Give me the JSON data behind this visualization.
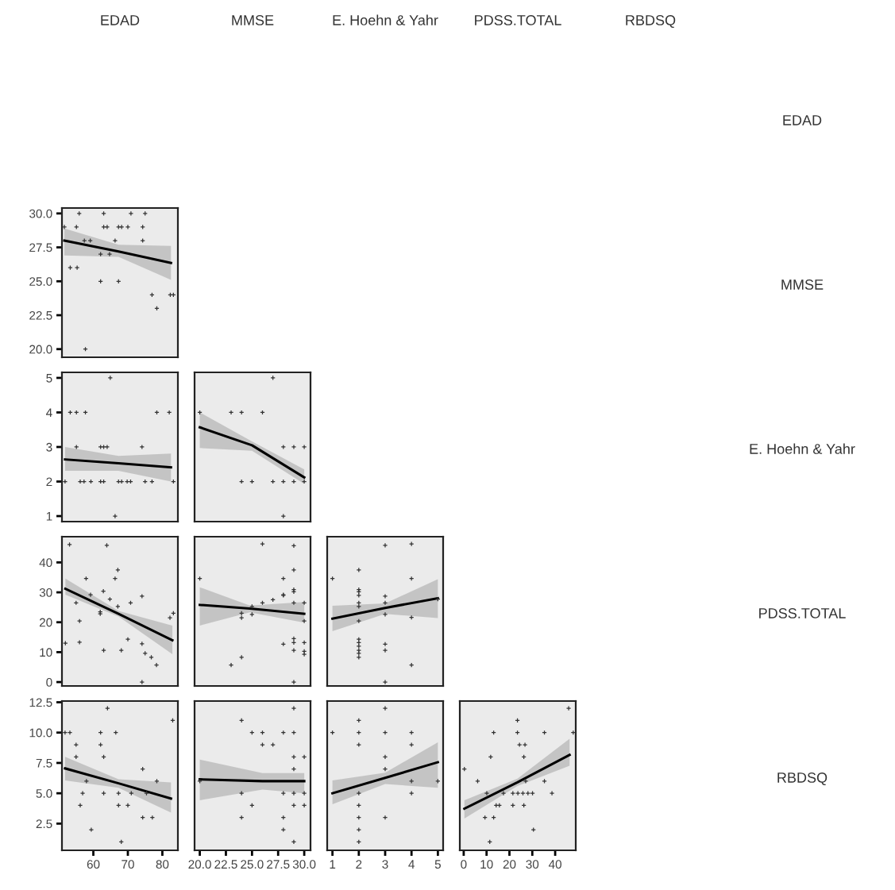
{
  "chart_data": [
    {
      "type": "other",
      "annotations": [
        "EDAD",
        "MMSE",
        "E. Hoehn & Yahr",
        "PDSS.TOTAL",
        "RBDSQ",
        "EDAD",
        "MMSE",
        "E. Hoehn & Yahr",
        "PDSS.TOTAL",
        "RBDSQ"
      ]
    },
    {
      "type": "scatter",
      "tick_labels": "y",
      "xlim": [
        50.9,
        84.5
      ],
      "ylim": [
        19.4,
        30.4
      ],
      "yticks": [
        {
          "value": 20,
          "label": "20.0"
        },
        {
          "value": 22.5,
          "label": "22.5"
        },
        {
          "value": 25,
          "label": "25.0"
        },
        {
          "value": 27.5,
          "label": "27.5"
        },
        {
          "value": 30,
          "label": "30.0"
        }
      ],
      "series": [
        {
          "marker": "cross",
          "color": "#333333",
          "x": [
            51.6,
            55.9,
            55.1,
            53.3,
            55.3,
            57.4,
            59.1,
            57.7,
            63.0,
            63.0,
            64.0,
            62.1,
            62.1,
            64.7,
            66.3,
            67.3,
            68.2,
            67.3,
            70.0,
            70.9,
            74.3,
            75.0,
            74.3,
            77.0,
            78.4,
            82.3,
            83.2
          ],
          "values": [
            29,
            30,
            29,
            26,
            26,
            28,
            28,
            20,
            30,
            29,
            29,
            27,
            25,
            27,
            28,
            29,
            29,
            25,
            29,
            30,
            29,
            30,
            28,
            24,
            23,
            24,
            24
          ]
        },
        {
          "type": "line",
          "color": "#000000",
          "x": [
            51.6,
            67.3,
            82.5
          ],
          "values": [
            28.0,
            27.2,
            26.35
          ],
          "lower": [
            26.9,
            26.8,
            25.1
          ],
          "upper": [
            28.9,
            27.7,
            27.6
          ]
        }
      ]
    },
    {
      "type": "scatter",
      "tick_labels": "y",
      "xlim": [
        50.9,
        84.5
      ],
      "ylim": [
        0.84,
        5.16
      ],
      "yticks": [
        1,
        2,
        3,
        4,
        5
      ],
      "series": [
        {
          "marker": "cross",
          "color": "#333333",
          "x": [
            51.8,
            53.3,
            55.1,
            55.1,
            56.2,
            57.3,
            57.7,
            59.3,
            62.1,
            63.0,
            62.1,
            63.0,
            64.0,
            64.9,
            66.3,
            67.3,
            68.2,
            69.8,
            70.8,
            74.1,
            75.0,
            77.0,
            78.4,
            82.0,
            83.2
          ],
          "values": [
            2,
            4,
            4,
            3,
            2,
            2,
            4,
            2,
            2,
            2,
            3,
            3,
            3,
            5,
            1,
            2,
            2,
            2,
            2,
            3,
            2,
            2,
            4,
            4,
            2
          ]
        },
        {
          "type": "line",
          "color": "#000000",
          "x": [
            51.8,
            67.3,
            82.5
          ],
          "values": [
            2.64,
            2.53,
            2.41
          ],
          "lower": [
            2.31,
            2.31,
            2.0
          ],
          "upper": [
            3.0,
            2.74,
            2.81
          ]
        }
      ]
    },
    {
      "type": "scatter",
      "tick_labels": false,
      "xlim": [
        19.5,
        30.6
      ],
      "ylim": [
        0.84,
        5.16
      ],
      "series": [
        {
          "marker": "cross",
          "color": "#333333",
          "x": [
            20,
            23,
            24,
            24,
            25,
            26,
            27,
            27,
            28,
            28,
            28,
            29,
            29,
            30,
            30
          ],
          "values": [
            4,
            4,
            4,
            2,
            2,
            4,
            5,
            2,
            1,
            3,
            2,
            3,
            2,
            3,
            2
          ]
        },
        {
          "type": "line",
          "color": "#000000",
          "x": [
            20,
            25,
            30
          ],
          "values": [
            3.57,
            3.05,
            2.12
          ],
          "lower": [
            2.97,
            2.89,
            1.93
          ],
          "upper": [
            4.0,
            3.16,
            2.35
          ]
        }
      ]
    },
    {
      "type": "scatter",
      "tick_labels": "y",
      "xlim": [
        50.9,
        84.5
      ],
      "ylim": [
        -1.3,
        48.6
      ],
      "yticks": [
        0,
        10,
        20,
        30,
        40
      ],
      "series": [
        {
          "marker": "cross",
          "color": "#333333",
          "x": [
            51.9,
            53.1,
            55.0,
            56.0,
            56.0,
            57.9,
            59.2,
            62.0,
            62.0,
            62.9,
            63.0,
            63.9,
            64.8,
            66.3,
            67.1,
            67.1,
            68.1,
            70.0,
            70.8,
            74.1,
            74.1,
            74.1,
            75.0,
            76.8,
            78.3,
            82.2,
            83.2
          ],
          "values": [
            13,
            46,
            26.5,
            20.4,
            13.3,
            34.6,
            29.2,
            22.8,
            23.5,
            30.4,
            10.6,
            45.7,
            27.7,
            34.6,
            25.3,
            37.5,
            10.6,
            14.3,
            26.5,
            28.7,
            12.8,
            0,
            9.6,
            8.3,
            5.7,
            21.5,
            23.0
          ]
        },
        {
          "type": "line",
          "color": "#000000",
          "x": [
            51.9,
            67.3,
            82.9
          ],
          "values": [
            31.2,
            22.8,
            14.0
          ],
          "lower": [
            29.2,
            21.9,
            9.3
          ],
          "upper": [
            34.6,
            23.8,
            18.9
          ]
        }
      ]
    },
    {
      "type": "scatter",
      "tick_labels": false,
      "xlim": [
        19.5,
        30.6
      ],
      "ylim": [
        -1.3,
        48.6
      ],
      "series": [
        {
          "marker": "cross",
          "color": "#333333",
          "x": [
            20,
            23,
            24,
            24,
            24,
            25,
            25,
            26,
            26,
            27,
            28,
            28,
            28,
            28,
            29,
            29,
            29,
            29,
            29,
            29,
            29,
            29,
            29,
            30,
            30,
            30,
            30,
            30
          ],
          "values": [
            34.6,
            5.7,
            8.3,
            21.5,
            23.0,
            25.3,
            22.6,
            46.2,
            26.5,
            27.5,
            29,
            29.2,
            34.6,
            12.7,
            45.6,
            37.5,
            30.2,
            30.9,
            26.5,
            14.5,
            13.2,
            10.6,
            0,
            26.5,
            20.4,
            13.2,
            10.3,
            9.3
          ]
        },
        {
          "type": "line",
          "color": "#000000",
          "x": [
            20,
            24.8,
            30
          ],
          "values": [
            25.8,
            24.6,
            22.8
          ],
          "lower": [
            18.9,
            23.3,
            19.9
          ],
          "upper": [
            31.7,
            25.6,
            26.8
          ]
        }
      ]
    },
    {
      "type": "scatter",
      "tick_labels": false,
      "xlim": [
        0.8,
        5.2
      ],
      "ylim": [
        -1.3,
        48.6
      ],
      "series": [
        {
          "marker": "cross",
          "color": "#333333",
          "x": [
            1,
            2,
            2,
            2,
            2,
            2,
            2,
            2,
            2,
            2,
            2,
            2,
            2,
            2,
            3,
            3,
            3,
            3,
            3,
            3,
            3,
            4,
            4,
            4,
            4,
            5
          ],
          "values": [
            34.6,
            37.5,
            30.9,
            30.2,
            29,
            26.5,
            25.3,
            20.4,
            14.3,
            13.2,
            12,
            10.6,
            9.6,
            8.3,
            45.7,
            28.7,
            26.5,
            22.6,
            12.7,
            10.6,
            0,
            46.2,
            34.6,
            21.6,
            5.7,
            27.7
          ]
        },
        {
          "type": "line",
          "color": "#000000",
          "x": [
            1,
            3,
            5
          ],
          "values": [
            21.2,
            24.8,
            28.0
          ],
          "lower": [
            17,
            22.8,
            21.4
          ],
          "upper": [
            25.5,
            26.3,
            34.4
          ]
        }
      ]
    },
    {
      "type": "scatter",
      "xlim": [
        50.9,
        84.5
      ],
      "ylim": [
        0.3,
        12.6
      ],
      "xticks": [
        60,
        70,
        80
      ],
      "yticks": [
        {
          "value": 2.5,
          "label": "2.5"
        },
        {
          "value": 5,
          "label": "5.0"
        },
        {
          "value": 7.5,
          "label": "7.5"
        },
        {
          "value": 10,
          "label": "10.0"
        },
        {
          "value": 12.5,
          "label": "12.5"
        }
      ],
      "series": [
        {
          "marker": "cross",
          "color": "#333333",
          "x": [
            51.8,
            53.2,
            55.0,
            55.0,
            56.2,
            56.9,
            58.0,
            59.4,
            64.1,
            62.1,
            62.1,
            63.0,
            63.0,
            66.5,
            67.3,
            67.3,
            68.1,
            70.0,
            71.0,
            74.3,
            74.3,
            75.4,
            77.1,
            78.4,
            83.0
          ],
          "values": [
            10,
            10,
            9,
            8,
            4,
            5,
            6,
            2,
            12,
            10,
            9,
            8,
            5,
            10,
            5,
            4,
            1,
            4,
            5,
            7,
            3,
            5,
            3,
            6,
            11
          ]
        },
        {
          "type": "line",
          "color": "#000000",
          "x": [
            51.8,
            67.3,
            82.5
          ],
          "values": [
            7.05,
            5.82,
            4.57
          ],
          "lower": [
            6.06,
            5.46,
            3.4
          ],
          "upper": [
            8.0,
            6.15,
            5.9
          ]
        }
      ]
    },
    {
      "type": "scatter",
      "tick_labels": "x",
      "xlim": [
        19.5,
        30.6
      ],
      "ylim": [
        0.3,
        12.6
      ],
      "xticks": [
        {
          "value": 20,
          "label": "20.0"
        },
        {
          "value": 22.5,
          "label": "22.5"
        },
        {
          "value": 25,
          "label": "25.0"
        },
        {
          "value": 27.5,
          "label": "27.5"
        },
        {
          "value": 30,
          "label": "30.0"
        }
      ],
      "series": [
        {
          "marker": "cross",
          "color": "#333333",
          "x": [
            20,
            24,
            24,
            24,
            25,
            25,
            26,
            26,
            27,
            28,
            28,
            28,
            28,
            29,
            29,
            29,
            29,
            29,
            29,
            29,
            30,
            30,
            30
          ],
          "values": [
            6,
            11,
            5,
            3,
            10,
            4,
            10,
            9,
            9,
            10,
            5,
            3,
            2,
            12,
            10,
            8,
            7,
            5,
            4,
            1,
            8,
            5,
            4
          ]
        },
        {
          "type": "line",
          "color": "#000000",
          "x": [
            20,
            26,
            30
          ],
          "values": [
            6.15,
            6.0,
            6.0
          ],
          "lower": [
            4.42,
            5.31,
            5.0
          ],
          "upper": [
            7.77,
            6.66,
            6.66
          ]
        }
      ]
    },
    {
      "type": "scatter",
      "tick_labels": "x",
      "xlim": [
        0.8,
        5.2
      ],
      "ylim": [
        0.3,
        12.6
      ],
      "xticks": [
        1,
        2,
        3,
        4,
        5
      ],
      "series": [
        {
          "marker": "cross",
          "color": "#333333",
          "x": [
            1,
            2,
            2,
            2,
            2,
            2,
            2,
            2,
            2,
            3,
            3,
            3,
            3,
            3,
            4,
            4,
            4,
            4,
            5
          ],
          "values": [
            10,
            11,
            10,
            9,
            5,
            4,
            3,
            2,
            1,
            12,
            10,
            8,
            7,
            3,
            10,
            9,
            6,
            5,
            6
          ]
        },
        {
          "type": "line",
          "color": "#000000",
          "x": [
            1,
            3,
            5
          ],
          "values": [
            5.0,
            6.27,
            7.56
          ],
          "lower": [
            4.1,
            5.76,
            5.46
          ],
          "upper": [
            6.06,
            6.7,
            9.2
          ]
        }
      ]
    },
    {
      "type": "scatter",
      "tick_labels": "x",
      "xlim": [
        -1.7,
        49
      ],
      "ylim": [
        0.3,
        12.6
      ],
      "xticks": [
        0,
        10,
        20,
        30,
        40
      ],
      "series": [
        {
          "marker": "cross",
          "color": "#333333",
          "x": [
            0.3,
            6.1,
            9.3,
            11.4,
            11.8,
            13.1,
            10.1,
            13.1,
            14.2,
            15.6,
            17.4,
            21.5,
            21.5,
            23.5,
            23.5,
            24.4,
            26.8,
            26.3,
            26.3,
            27.1,
            23.7,
            25.9,
            28.1,
            30.1,
            30.5,
            35.3,
            35.3,
            38.6,
            45.9,
            47.9
          ],
          "values": [
            7,
            6,
            3,
            1,
            8,
            10,
            5,
            3,
            4,
            4,
            5,
            5,
            4,
            11,
            10,
            9,
            9,
            8,
            4,
            6,
            5,
            5,
            5,
            5,
            2,
            10,
            6,
            5,
            12,
            10
          ]
        },
        {
          "type": "line",
          "color": "#000000",
          "x": [
            0.3,
            23.5,
            46.3
          ],
          "values": [
            3.73,
            5.9,
            8.16
          ],
          "lower": [
            2.92,
            5.6,
            7.26
          ],
          "upper": [
            4.42,
            6.2,
            9.5
          ]
        }
      ]
    }
  ]
}
